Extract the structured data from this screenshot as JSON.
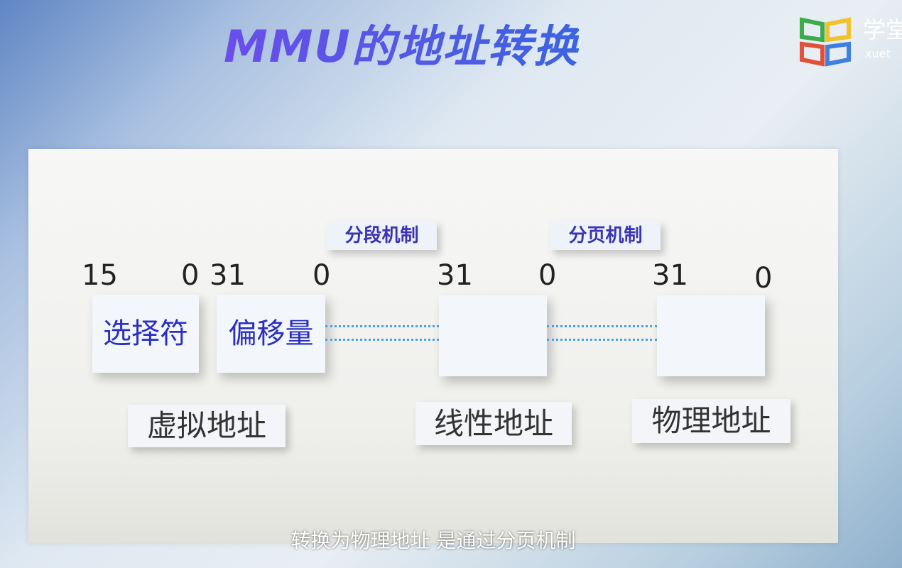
{
  "title": "MMU的地址转换",
  "logo": {
    "text": "学堂",
    "sub": "xuet",
    "colors": [
      "#3cab4a",
      "#f2c12e",
      "#e0503a",
      "#3f7fe0"
    ]
  },
  "diagram": {
    "mechanisms": [
      "分段机制",
      "分页机制"
    ],
    "virtual": {
      "selector": "选择符",
      "offset": "偏移量",
      "selector_bits": [
        "15",
        "0"
      ],
      "offset_bits": [
        "31",
        "0"
      ],
      "label": "虚拟地址"
    },
    "linear": {
      "bits": [
        "31",
        "0"
      ],
      "label": "线性地址"
    },
    "physical": {
      "bits": [
        "31",
        "0"
      ],
      "label": "物理地址"
    }
  },
  "subtitle": "转换为物理地址 是通过分页机制"
}
